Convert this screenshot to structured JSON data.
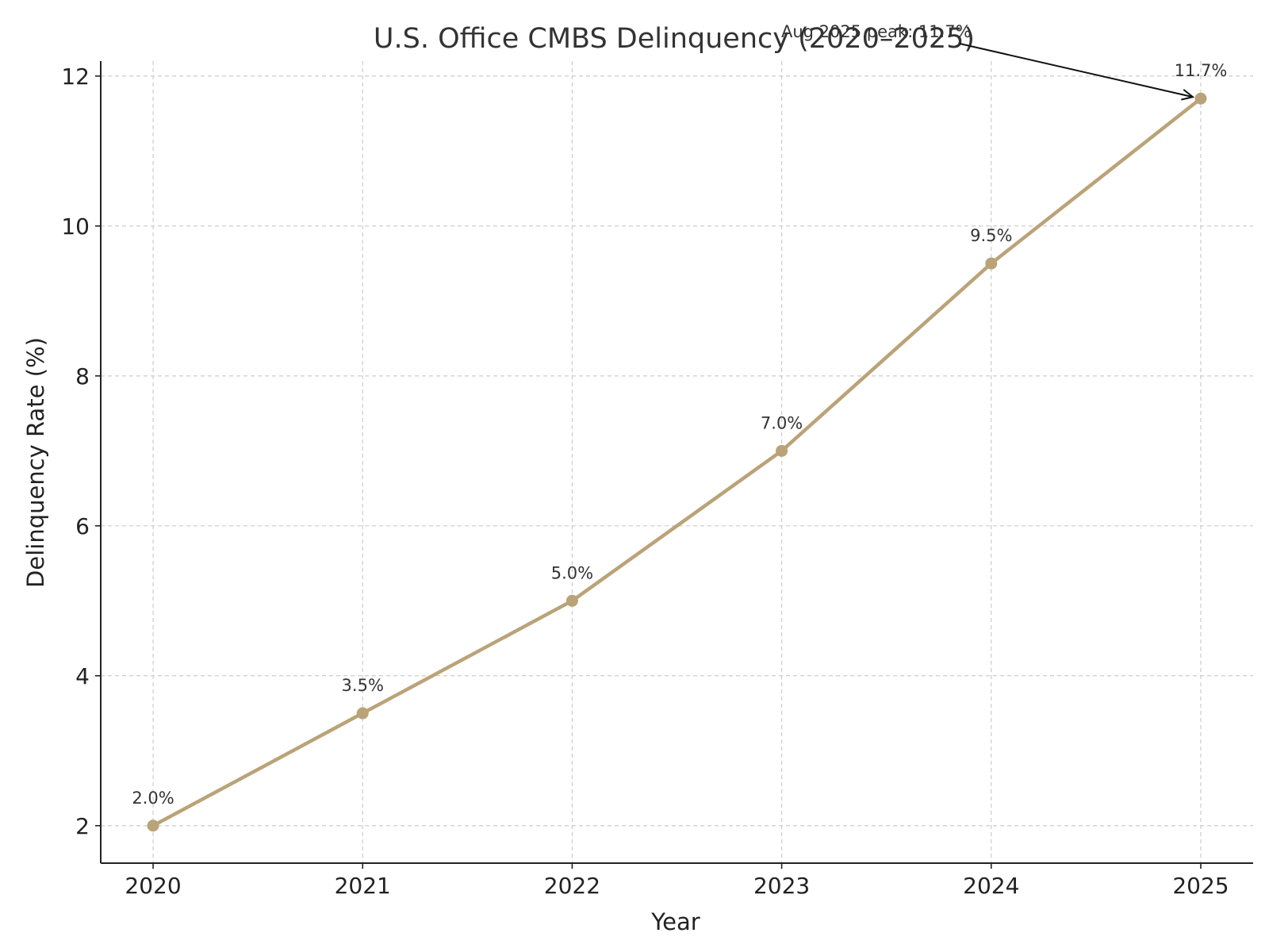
{
  "chart_data": {
    "type": "line",
    "title": "U.S. Office CMBS Delinquency (2020–2025)",
    "xlabel": "Year",
    "ylabel": "Delinquency Rate (%)",
    "x": [
      "2020",
      "2021",
      "2022",
      "2023",
      "2024",
      "2025"
    ],
    "series": [
      {
        "values": [
          2.0,
          3.5,
          5.0,
          7.0,
          9.5,
          11.7
        ],
        "labels": [
          "2.0%",
          "3.5%",
          "5.0%",
          "7.0%",
          "9.5%",
          "11.7%"
        ],
        "color": "#baa378"
      }
    ],
    "xlim": [
      2019.75,
      2025.25
    ],
    "ylim": [
      1.5,
      12.2
    ],
    "yticks": [
      2,
      4,
      6,
      8,
      10,
      12
    ],
    "grid": true,
    "annotation": {
      "text": "Aug 2025 peak: 11.7%",
      "x": "2025",
      "y": 11.7
    }
  }
}
